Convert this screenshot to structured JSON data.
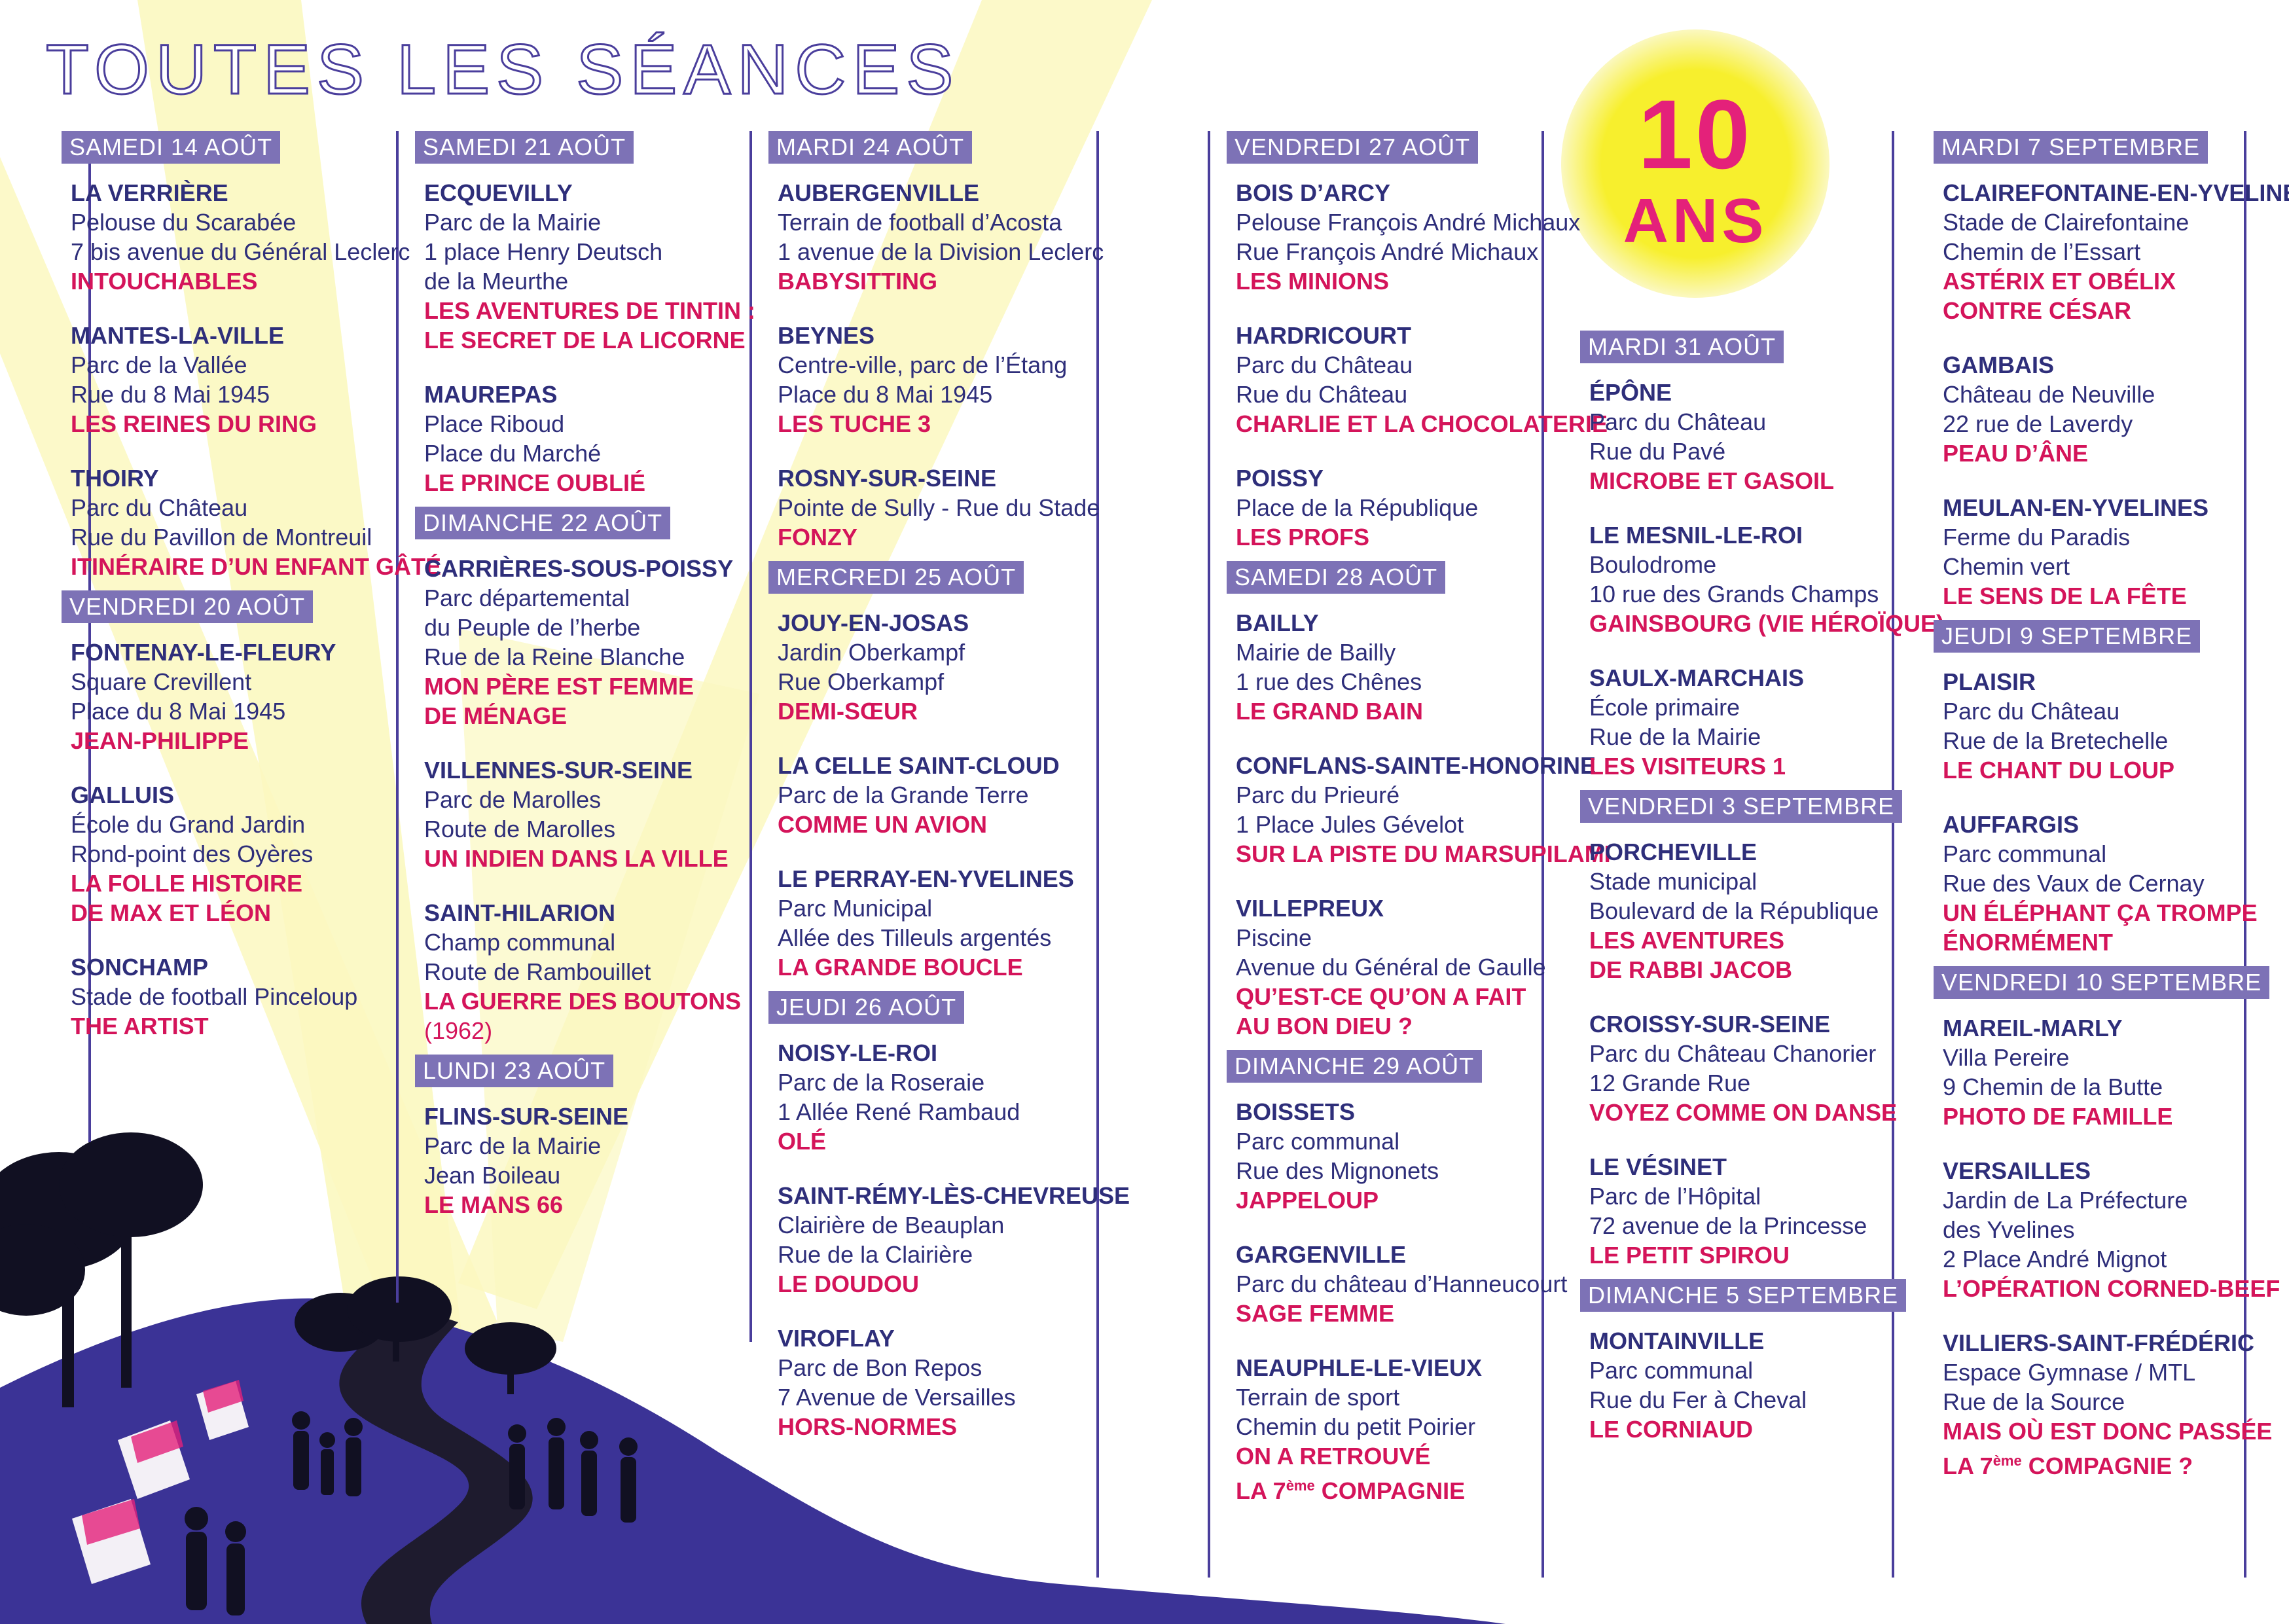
{
  "title": "TOUTES LES SÉANCES",
  "badge": {
    "number": "10",
    "word": "ANS"
  },
  "columns": [
    {
      "blocks": [
        {
          "day": "SAMEDI 14 AOÛT",
          "entries": [
            {
              "town": "LA VERRIÈRE",
              "lines": [
                "Pelouse du Scarabée",
                "7 bis avenue du Général Leclerc"
              ],
              "films": [
                "INTOUCHABLES"
              ]
            },
            {
              "town": "MANTES-LA-VILLE",
              "lines": [
                "Parc de la Vallée",
                "Rue du 8 Mai 1945"
              ],
              "films": [
                "LES REINES DU RING"
              ]
            },
            {
              "town": "THOIRY",
              "lines": [
                "Parc du Château",
                "Rue du Pavillon de Montreuil"
              ],
              "films": [
                "ITINÉRAIRE D’UN ENFANT GÂTÉ"
              ]
            }
          ]
        },
        {
          "day": "VENDREDI 20 AOÛT",
          "entries": [
            {
              "town": "FONTENAY-LE-FLEURY",
              "lines": [
                "Square Crevillent",
                "Place du 8 Mai 1945"
              ],
              "films": [
                "JEAN-PHILIPPE"
              ]
            },
            {
              "town": "GALLUIS",
              "lines": [
                "École du Grand Jardin",
                "Rond-point des Oyères"
              ],
              "films": [
                "LA FOLLE HISTOIRE",
                "DE MAX ET LÉON"
              ]
            },
            {
              "town": "SONCHAMP",
              "lines": [
                "Stade de football Pinceloup"
              ],
              "films": [
                "THE ARTIST"
              ]
            }
          ]
        }
      ]
    },
    {
      "blocks": [
        {
          "day": "SAMEDI 21 AOÛT",
          "entries": [
            {
              "town": "ECQUEVILLY",
              "lines": [
                "Parc de la Mairie",
                "1 place Henry Deutsch",
                "de la Meurthe"
              ],
              "films": [
                "LES AVENTURES DE TINTIN :",
                "LE SECRET DE LA LICORNE"
              ]
            },
            {
              "town": "MAUREPAS",
              "lines": [
                "Place Riboud",
                "Place du Marché"
              ],
              "films": [
                "LE PRINCE OUBLIÉ"
              ]
            }
          ]
        },
        {
          "day": "DIMANCHE 22 AOÛT",
          "entries": [
            {
              "town": "CARRIÈRES-SOUS-POISSY",
              "lines": [
                "Parc départemental",
                "du Peuple de l’herbe",
                "Rue de la Reine Blanche"
              ],
              "films": [
                "MON PÈRE EST FEMME",
                "DE MÉNAGE"
              ]
            },
            {
              "town": "VILLENNES-SUR-SEINE",
              "lines": [
                "Parc de Marolles",
                "Route de Marolles"
              ],
              "films": [
                "UN INDIEN DANS LA VILLE"
              ]
            },
            {
              "town": "SAINT-HILARION",
              "lines": [
                "Champ communal",
                "Route de Rambouillet"
              ],
              "films": [
                "LA GUERRE DES BOUTONS"
              ],
              "note": "(1962)"
            }
          ]
        },
        {
          "day": "LUNDI 23 AOÛT",
          "entries": [
            {
              "town": "FLINS-SUR-SEINE",
              "lines": [
                "Parc de la Mairie",
                "Jean Boileau"
              ],
              "films": [
                "LE MANS 66"
              ]
            }
          ]
        }
      ]
    },
    {
      "blocks": [
        {
          "day": "MARDI 24 AOÛT",
          "entries": [
            {
              "town": "AUBERGENVILLE",
              "lines": [
                "Terrain de football d’Acosta",
                "1 avenue de la Division Leclerc"
              ],
              "films": [
                "BABYSITTING"
              ]
            },
            {
              "town": "BEYNES",
              "lines": [
                "Centre-ville, parc de l’Étang",
                "Place du 8 Mai 1945"
              ],
              "films": [
                "LES TUCHE 3"
              ]
            },
            {
              "town": "ROSNY-SUR-SEINE",
              "lines": [
                "Pointe de Sully - Rue du Stade"
              ],
              "films": [
                "FONZY"
              ]
            }
          ]
        },
        {
          "day": "MERCREDI 25 AOÛT",
          "entries": [
            {
              "town": "JOUY-EN-JOSAS",
              "lines": [
                "Jardin Oberkampf",
                "Rue Oberkampf"
              ],
              "films": [
                "DEMI-SŒUR"
              ]
            },
            {
              "town": "LA CELLE SAINT-CLOUD",
              "lines": [
                "Parc de la Grande Terre"
              ],
              "films": [
                "COMME UN AVION"
              ]
            },
            {
              "town": "LE PERRAY-EN-YVELINES",
              "lines": [
                "Parc Municipal",
                "Allée des Tilleuls argentés"
              ],
              "films": [
                "LA GRANDE BOUCLE"
              ]
            }
          ]
        },
        {
          "day": "JEUDI 26 AOÛT",
          "entries": [
            {
              "town": "NOISY-LE-ROI",
              "lines": [
                "Parc de la Roseraie",
                "1 Allée René Rambaud"
              ],
              "films": [
                "OLÉ"
              ]
            },
            {
              "town": "SAINT-RÉMY-LÈS-CHEVREUSE",
              "lines": [
                "Clairière de Beauplan",
                "Rue de la Clairière"
              ],
              "films": [
                "LE DOUDOU"
              ]
            },
            {
              "town": "VIROFLAY",
              "lines": [
                "Parc de Bon Repos",
                "7 Avenue de Versailles"
              ],
              "films": [
                "HORS-NORMES"
              ]
            }
          ]
        }
      ]
    },
    {
      "blocks": [
        {
          "day": "VENDREDI 27 AOÛT",
          "entries": [
            {
              "town": "BOIS D’ARCY",
              "lines": [
                "Pelouse François André Michaux",
                "Rue François André Michaux"
              ],
              "films": [
                "LES MINIONS"
              ]
            },
            {
              "town": "HARDRICOURT",
              "lines": [
                "Parc du Château",
                "Rue du Château"
              ],
              "films": [
                "CHARLIE ET LA CHOCOLATERIE"
              ]
            },
            {
              "town": "POISSY",
              "lines": [
                "Place de la République"
              ],
              "films": [
                "LES PROFS"
              ]
            }
          ]
        },
        {
          "day": "SAMEDI 28 AOÛT",
          "entries": [
            {
              "town": "BAILLY",
              "lines": [
                "Mairie de Bailly",
                "1 rue des Chênes"
              ],
              "films": [
                "LE GRAND BAIN"
              ]
            },
            {
              "town": "CONFLANS-SAINTE-HONORINE",
              "lines": [
                "Parc du Prieuré",
                "1 Place Jules Gévelot"
              ],
              "films": [
                "SUR LA PISTE DU MARSUPILAMI"
              ]
            },
            {
              "town": "VILLEPREUX",
              "lines": [
                "Piscine",
                "Avenue du Général de Gaulle"
              ],
              "films": [
                "QU’EST-CE QU’ON A FAIT",
                "AU BON DIEU ?"
              ]
            }
          ]
        },
        {
          "day": "DIMANCHE 29 AOÛT",
          "entries": [
            {
              "town": "BOISSETS",
              "lines": [
                "Parc communal",
                "Rue des Mignonets"
              ],
              "films": [
                "JAPPELOUP"
              ]
            },
            {
              "town": "GARGENVILLE",
              "lines": [
                "Parc du château d’Hanneucourt"
              ],
              "films": [
                "SAGE FEMME"
              ]
            },
            {
              "town": "NEAUPHLE-LE-VIEUX",
              "lines": [
                "Terrain de sport",
                "Chemin du petit Poirier"
              ],
              "films": [
                "ON A RETROUVÉ",
                "LA 7ème COMPAGNIE"
              ]
            }
          ]
        }
      ]
    },
    {
      "blocks": [
        {
          "day": "MARDI 31 AOÛT",
          "entries": [
            {
              "town": "ÉPÔNE",
              "lines": [
                "Parc du Château",
                "Rue du Pavé"
              ],
              "films": [
                "MICROBE ET GASOIL"
              ]
            },
            {
              "town": "LE MESNIL-LE-ROI",
              "lines": [
                "Boulodrome",
                "10 rue des Grands Champs"
              ],
              "films": [
                "GAINSBOURG (VIE HÉROÏQUE)"
              ]
            },
            {
              "town": "SAULX-MARCHAIS",
              "lines": [
                "École primaire",
                "Rue de la Mairie"
              ],
              "films": [
                "LES VISITEURS 1"
              ]
            }
          ]
        },
        {
          "day": "VENDREDI 3 SEPTEMBRE",
          "entries": [
            {
              "town": "PORCHEVILLE",
              "lines": [
                "Stade municipal",
                "Boulevard de la République"
              ],
              "films": [
                "LES AVENTURES",
                "DE RABBI JACOB"
              ]
            },
            {
              "town": "CROISSY-SUR-SEINE",
              "lines": [
                "Parc du Château Chanorier",
                "12 Grande Rue"
              ],
              "films": [
                "VOYEZ COMME ON DANSE"
              ]
            },
            {
              "town": "LE VÉSINET",
              "lines": [
                "Parc de l’Hôpital",
                "72 avenue de la Princesse"
              ],
              "films": [
                "LE PETIT SPIROU"
              ]
            }
          ]
        },
        {
          "day": "DIMANCHE 5 SEPTEMBRE",
          "entries": [
            {
              "town": "MONTAINVILLE",
              "lines": [
                "Parc communal",
                "Rue du Fer à Cheval"
              ],
              "films": [
                "LE CORNIAUD"
              ]
            }
          ]
        }
      ]
    },
    {
      "blocks": [
        {
          "day": "MARDI 7 SEPTEMBRE",
          "entries": [
            {
              "town": "CLAIREFONTAINE-EN-YVELINES",
              "lines": [
                "Stade de Clairefontaine",
                "Chemin de l’Essart"
              ],
              "films": [
                "ASTÉRIX ET OBÉLIX",
                "CONTRE CÉSAR"
              ]
            },
            {
              "town": "GAMBAIS",
              "lines": [
                "Château de Neuville",
                "22 rue de Laverdy"
              ],
              "films": [
                "PEAU D’ÂNE"
              ]
            },
            {
              "town": "MEULAN-EN-YVELINES",
              "lines": [
                "Ferme du Paradis",
                "Chemin vert"
              ],
              "films": [
                "LE SENS DE LA FÊTE"
              ]
            }
          ]
        },
        {
          "day": "JEUDI 9 SEPTEMBRE",
          "entries": [
            {
              "town": "PLAISIR",
              "lines": [
                "Parc du Château",
                "Rue de la Bretechelle"
              ],
              "films": [
                "LE CHANT DU LOUP"
              ]
            },
            {
              "town": "AUFFARGIS",
              "lines": [
                "Parc communal",
                "Rue des Vaux de Cernay"
              ],
              "films": [
                "UN ÉLÉPHANT ÇA TROMPE",
                "ÉNORMÉMENT"
              ]
            }
          ]
        },
        {
          "day": "VENDREDI 10 SEPTEMBRE",
          "entries": [
            {
              "town": "MAREIL-MARLY",
              "lines": [
                "Villa Pereire",
                "9 Chemin de la Butte"
              ],
              "films": [
                "PHOTO DE FAMILLE"
              ]
            },
            {
              "town": "VERSAILLES",
              "lines": [
                "Jardin de La Préfecture",
                "des Yvelines",
                "2 Place André Mignot"
              ],
              "films": [
                "L’OPÉRATION CORNED-BEEF"
              ]
            },
            {
              "town": "VILLIERS-SAINT-FRÉDÉRIC",
              "lines": [
                "Espace Gymnase / MTL",
                "Rue de la Source"
              ],
              "films": [
                "MAIS OÙ EST DONC PASSÉE",
                "LA 7ème COMPAGNIE ?"
              ]
            }
          ]
        }
      ]
    }
  ],
  "colors": {
    "navy": "#2e2e7a",
    "magenta": "#d4145a",
    "header_bg": "#7d72b6",
    "line": "#4a3e9c",
    "hill": "#3b3396",
    "beam": "#fbf8c0",
    "sun": "#f7ef2d"
  }
}
